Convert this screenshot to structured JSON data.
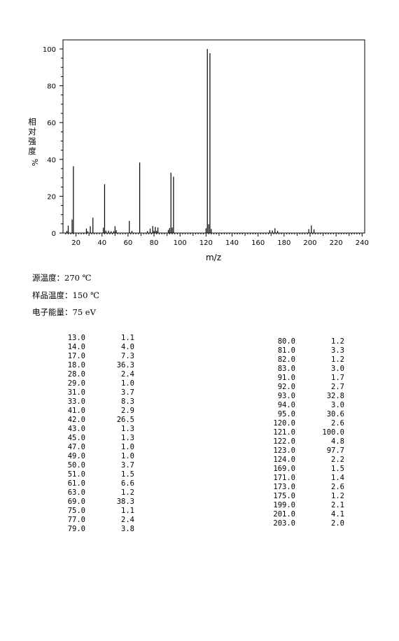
{
  "chart_data": {
    "type": "bar",
    "xlabel": "m/z",
    "ylabel_chars": [
      "相",
      "对",
      "强",
      "度"
    ],
    "ylabel_unit": "%",
    "xlim": [
      10,
      242
    ],
    "ylim": [
      0,
      100
    ],
    "xticks": [
      20,
      40,
      60,
      80,
      100,
      120,
      140,
      160,
      180,
      200,
      220,
      240
    ],
    "yticks": [
      0,
      20,
      40,
      60,
      80,
      100
    ],
    "grid": false,
    "bar_color": "#000000",
    "peaks": [
      {
        "mz": 13.0,
        "intensity": 1.1
      },
      {
        "mz": 14.0,
        "intensity": 4.0
      },
      {
        "mz": 17.0,
        "intensity": 7.3
      },
      {
        "mz": 18.0,
        "intensity": 36.3
      },
      {
        "mz": 28.0,
        "intensity": 2.4
      },
      {
        "mz": 29.0,
        "intensity": 1.0
      },
      {
        "mz": 31.0,
        "intensity": 3.7
      },
      {
        "mz": 33.0,
        "intensity": 8.3
      },
      {
        "mz": 41.0,
        "intensity": 2.9
      },
      {
        "mz": 42.0,
        "intensity": 26.5
      },
      {
        "mz": 43.0,
        "intensity": 1.3
      },
      {
        "mz": 45.0,
        "intensity": 1.3
      },
      {
        "mz": 47.0,
        "intensity": 1.0
      },
      {
        "mz": 49.0,
        "intensity": 1.0
      },
      {
        "mz": 50.0,
        "intensity": 3.7
      },
      {
        "mz": 51.0,
        "intensity": 1.5
      },
      {
        "mz": 61.0,
        "intensity": 6.6
      },
      {
        "mz": 63.0,
        "intensity": 1.2
      },
      {
        "mz": 69.0,
        "intensity": 38.3
      },
      {
        "mz": 75.0,
        "intensity": 1.1
      },
      {
        "mz": 77.0,
        "intensity": 2.4
      },
      {
        "mz": 79.0,
        "intensity": 3.8
      },
      {
        "mz": 80.0,
        "intensity": 1.2
      },
      {
        "mz": 81.0,
        "intensity": 3.3
      },
      {
        "mz": 82.0,
        "intensity": 1.2
      },
      {
        "mz": 83.0,
        "intensity": 3.0
      },
      {
        "mz": 91.0,
        "intensity": 1.7
      },
      {
        "mz": 92.0,
        "intensity": 2.7
      },
      {
        "mz": 93.0,
        "intensity": 32.8
      },
      {
        "mz": 94.0,
        "intensity": 3.0
      },
      {
        "mz": 95.0,
        "intensity": 30.6
      },
      {
        "mz": 120.0,
        "intensity": 2.6
      },
      {
        "mz": 121.0,
        "intensity": 100.0
      },
      {
        "mz": 122.0,
        "intensity": 4.8
      },
      {
        "mz": 123.0,
        "intensity": 97.7
      },
      {
        "mz": 124.0,
        "intensity": 2.2
      },
      {
        "mz": 169.0,
        "intensity": 1.5
      },
      {
        "mz": 171.0,
        "intensity": 1.4
      },
      {
        "mz": 173.0,
        "intensity": 2.6
      },
      {
        "mz": 175.0,
        "intensity": 1.2
      },
      {
        "mz": 199.0,
        "intensity": 2.1
      },
      {
        "mz": 201.0,
        "intensity": 4.1
      },
      {
        "mz": 203.0,
        "intensity": 2.0
      }
    ]
  },
  "conditions": [
    {
      "label": "源温度：",
      "value": "270 ℃"
    },
    {
      "label": "样品温度：",
      "value": "150 ℃"
    },
    {
      "label": "电子能量：",
      "value": "75 eV"
    }
  ],
  "table_left": [
    [
      "13.0",
      "1.1"
    ],
    [
      "14.0",
      "4.0"
    ],
    [
      "17.0",
      "7.3"
    ],
    [
      "18.0",
      "36.3"
    ],
    [
      "28.0",
      "2.4"
    ],
    [
      "29.0",
      "1.0"
    ],
    [
      "31.0",
      "3.7"
    ],
    [
      "33.0",
      "8.3"
    ],
    [
      "41.0",
      "2.9"
    ],
    [
      "42.0",
      "26.5"
    ],
    [
      "43.0",
      "1.3"
    ],
    [
      "45.0",
      "1.3"
    ],
    [
      "47.0",
      "1.0"
    ],
    [
      "49.0",
      "1.0"
    ],
    [
      "50.0",
      "3.7"
    ],
    [
      "51.0",
      "1.5"
    ],
    [
      "61.0",
      "6.6"
    ],
    [
      "63.0",
      "1.2"
    ],
    [
      "69.0",
      "38.3"
    ],
    [
      "75.0",
      "1.1"
    ],
    [
      "77.0",
      "2.4"
    ],
    [
      "79.0",
      "3.8"
    ]
  ],
  "table_right": [
    [
      "80.0",
      "1.2"
    ],
    [
      "81.0",
      "3.3"
    ],
    [
      "82.0",
      "1.2"
    ],
    [
      "83.0",
      "3.0"
    ],
    [
      "91.0",
      "1.7"
    ],
    [
      "92.0",
      "2.7"
    ],
    [
      "93.0",
      "32.8"
    ],
    [
      "94.0",
      "3.0"
    ],
    [
      "95.0",
      "30.6"
    ],
    [
      "120.0",
      "2.6"
    ],
    [
      "121.0",
      "100.0"
    ],
    [
      "122.0",
      "4.8"
    ],
    [
      "123.0",
      "97.7"
    ],
    [
      "124.0",
      "2.2"
    ],
    [
      "169.0",
      "1.5"
    ],
    [
      "171.0",
      "1.4"
    ],
    [
      "173.0",
      "2.6"
    ],
    [
      "175.0",
      "1.2"
    ],
    [
      "199.0",
      "2.1"
    ],
    [
      "201.0",
      "4.1"
    ],
    [
      "203.0",
      "2.0"
    ]
  ]
}
